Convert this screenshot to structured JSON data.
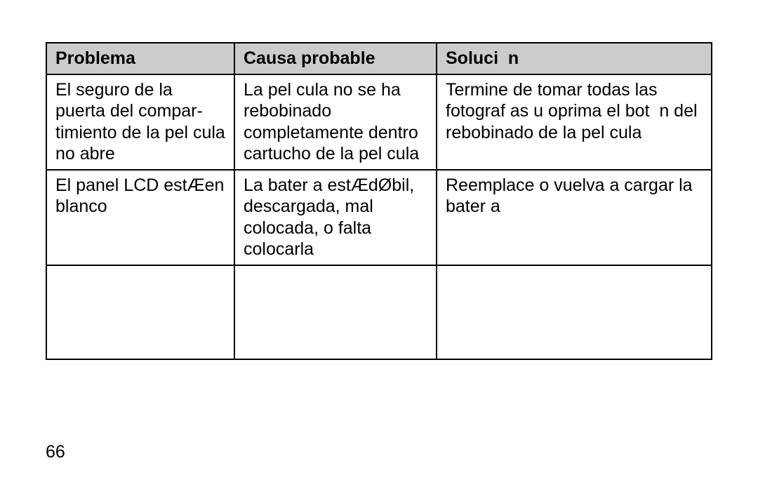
{
  "table": {
    "headers": {
      "problema": "Problema",
      "causa": "Causa probable",
      "solucion": "Soluci  n"
    },
    "rows": [
      {
        "problema": "El seguro de la puerta del compar-timiento de la pel cula no abre",
        "causa": "La pel cula no se ha rebobinado completamente dentro cartucho de la pel cula",
        "solucion": "Termine de tomar todas las fotograf as u oprima el bot  n del rebobinado de la pel cula"
      },
      {
        "problema": "El panel LCD estÆen blanco",
        "causa": "La bater a estÆdØbil, descargada, mal colocada, o falta colocarla",
        "solucion": "Reemplace o vuelva a cargar la bater a"
      }
    ]
  },
  "pageNumber": "66"
}
